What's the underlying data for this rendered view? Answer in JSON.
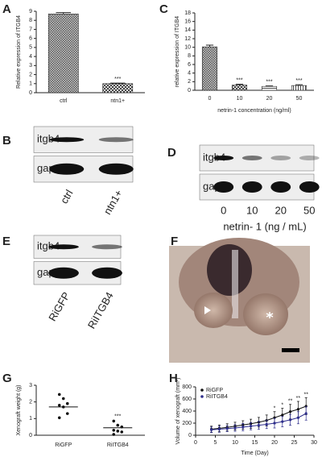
{
  "chart_data": [
    {
      "type": "bar",
      "panel": "A",
      "ylabel": "Relative expression of ITGB4",
      "categories": [
        "ctrl",
        "ntn1+"
      ],
      "values": [
        8.7,
        1.0
      ],
      "errors": [
        0.15,
        0.06
      ],
      "fills": [
        "checker",
        "cross"
      ],
      "significance": [
        null,
        "***"
      ],
      "ylim": [
        0,
        9
      ],
      "yticks": [
        0,
        1,
        2,
        3,
        4,
        5,
        6,
        7,
        8,
        9
      ]
    },
    {
      "type": "bar",
      "panel": "C",
      "ylabel": "relative expression of ITGB4",
      "xlabel": "netrin-1 concentration (ng/ml)",
      "categories": [
        "0",
        "10",
        "20",
        "50"
      ],
      "values": [
        10.1,
        1.2,
        0.9,
        1.1
      ],
      "errors": [
        0.4,
        0.2,
        0.1,
        0.2
      ],
      "fills": [
        "checker",
        "cross",
        "hlines",
        "vlines"
      ],
      "significance": [
        null,
        "***",
        "***",
        "***"
      ],
      "ylim": [
        0,
        18
      ],
      "yticks": [
        0,
        2,
        4,
        6,
        8,
        10,
        12,
        14,
        16,
        18
      ]
    },
    {
      "type": "dot",
      "panel": "G",
      "ylabel": "Xenograft weight (g)",
      "categories": [
        "RiGFP",
        "RiITGB4"
      ],
      "values": [
        [
          2.45,
          2.2,
          1.9,
          1.8,
          1.7,
          1.3,
          1.05
        ],
        [
          0.85,
          0.6,
          0.5,
          0.3,
          0.25,
          0.2,
          0.05
        ]
      ],
      "means": [
        1.7,
        0.45
      ],
      "significance": [
        null,
        "***"
      ],
      "ylim": [
        0,
        3
      ],
      "yticks": [
        0,
        1,
        2,
        3
      ]
    },
    {
      "type": "line",
      "panel": "H",
      "ylabel": "Volume of xenograft (mm³)",
      "xlabel": "Time (Day)",
      "x": [
        4,
        6,
        8,
        10,
        12,
        14,
        16,
        18,
        20,
        22,
        24,
        26,
        28
      ],
      "series": [
        {
          "name": "RiGFP",
          "color": "#111111",
          "values": [
            100,
            115,
            130,
            150,
            170,
            190,
            215,
            245,
            290,
            335,
            390,
            430,
            480
          ],
          "errors": [
            50,
            55,
            60,
            65,
            70,
            75,
            80,
            90,
            100,
            110,
            120,
            130,
            140
          ]
        },
        {
          "name": "RiITGB4",
          "color": "#2e2e8c",
          "values": [
            90,
            100,
            110,
            120,
            135,
            150,
            165,
            180,
            200,
            225,
            255,
            290,
            360
          ],
          "errors": [
            45,
            50,
            50,
            55,
            60,
            60,
            65,
            70,
            80,
            85,
            90,
            100,
            110
          ]
        }
      ],
      "significance": [
        null,
        null,
        null,
        null,
        null,
        null,
        null,
        null,
        "*",
        "*",
        "**",
        "**",
        "**"
      ],
      "legend": "upper left",
      "xlim": [
        0,
        30
      ],
      "xticks": [
        0,
        5,
        10,
        15,
        20,
        25,
        30
      ],
      "ylim": [
        0,
        800
      ],
      "yticks": [
        0,
        200,
        400,
        600,
        800
      ]
    }
  ],
  "blots": [
    {
      "panel": "B",
      "rows": [
        "itgb4",
        "gapdh"
      ],
      "lanes": [
        "ctrl",
        "ntn1+"
      ]
    },
    {
      "panel": "D",
      "rows": [
        "itgb4",
        "gapdh"
      ],
      "lanes": [
        "0",
        "10",
        "20",
        "50"
      ],
      "xlabel": "netrin- 1 (ng / mL)"
    },
    {
      "panel": "E",
      "rows": [
        "itgb4",
        "gapdh"
      ],
      "lanes": [
        "RiGFP",
        "RiITGB4"
      ]
    }
  ],
  "photo": {
    "panel": "F"
  }
}
